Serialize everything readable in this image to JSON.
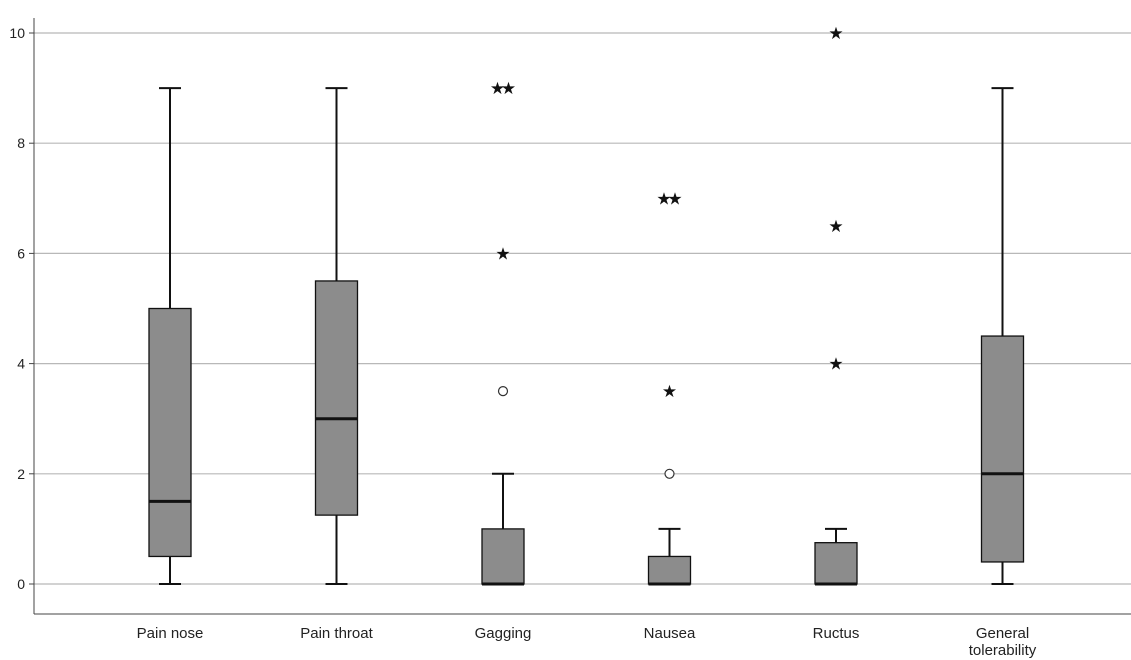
{
  "chart_data": {
    "type": "boxplot",
    "title": "",
    "xlabel": "",
    "ylabel": "",
    "ylim": [
      0,
      10
    ],
    "yticks": [
      0,
      2,
      4,
      6,
      8,
      10
    ],
    "grid": true,
    "box_color": "#8c8c8c",
    "categories": [
      [
        "Pain nose"
      ],
      [
        "Pain throat"
      ],
      [
        "Gagging"
      ],
      [
        "Nausea"
      ],
      [
        "Ructus"
      ],
      [
        "General",
        "tolerability"
      ]
    ],
    "boxes": [
      {
        "whisker_low": 0,
        "q1": 0.5,
        "median": 1.5,
        "q3": 5,
        "whisker_high": 9,
        "outliers": [],
        "extremes": []
      },
      {
        "whisker_low": 0,
        "q1": 1.25,
        "median": 3,
        "q3": 5.5,
        "whisker_high": 9,
        "outliers": [],
        "extremes": []
      },
      {
        "whisker_low": 0,
        "q1": 0,
        "median": 0,
        "q3": 1,
        "whisker_high": 2,
        "outliers": [
          3.5
        ],
        "extremes": [
          6,
          9,
          9
        ]
      },
      {
        "whisker_low": 0,
        "q1": 0,
        "median": 0,
        "q3": 0.5,
        "whisker_high": 1,
        "outliers": [
          2
        ],
        "extremes": [
          3.5,
          7,
          7
        ]
      },
      {
        "whisker_low": 0,
        "q1": 0,
        "median": 0,
        "q3": 0.75,
        "whisker_high": 1,
        "outliers": [],
        "extremes": [
          4,
          6.5,
          10
        ]
      },
      {
        "whisker_low": 0,
        "q1": 0.4,
        "median": 2,
        "q3": 4.5,
        "whisker_high": 9,
        "outliers": [],
        "extremes": []
      }
    ]
  }
}
